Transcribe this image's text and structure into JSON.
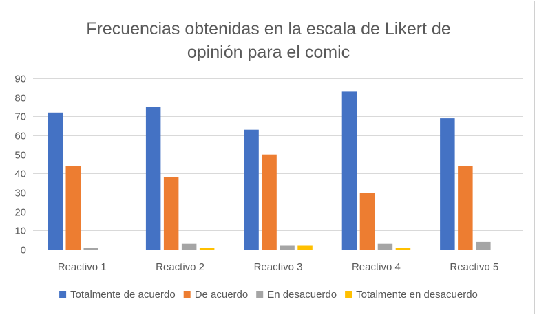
{
  "chart_data": {
    "type": "bar",
    "title_lines": [
      "Frecuencias obtenidas en la escala de Likert de",
      "opinión para el comic"
    ],
    "categories": [
      "Reactivo 1",
      "Reactivo 2",
      "Reactivo 3",
      "Reactivo 4",
      "Reactivo 5"
    ],
    "series": [
      {
        "name": "Totalmente de acuerdo",
        "color": "#4472C4",
        "values": [
          72,
          75,
          63,
          83,
          69
        ]
      },
      {
        "name": "De acuerdo",
        "color": "#ED7D31",
        "values": [
          44,
          38,
          50,
          30,
          44
        ]
      },
      {
        "name": "En desacuerdo",
        "color": "#A5A5A5",
        "values": [
          1,
          3,
          2,
          3,
          4
        ]
      },
      {
        "name": "Totalmente en desacuerdo",
        "color": "#FFC000",
        "values": [
          0,
          1,
          2,
          1,
          0
        ]
      }
    ],
    "yticks": [
      0,
      10,
      20,
      30,
      40,
      50,
      60,
      70,
      80,
      90
    ],
    "ylim": [
      0,
      90
    ],
    "xlabel": "",
    "ylabel": "",
    "grid": true,
    "legend": "bottom"
  }
}
